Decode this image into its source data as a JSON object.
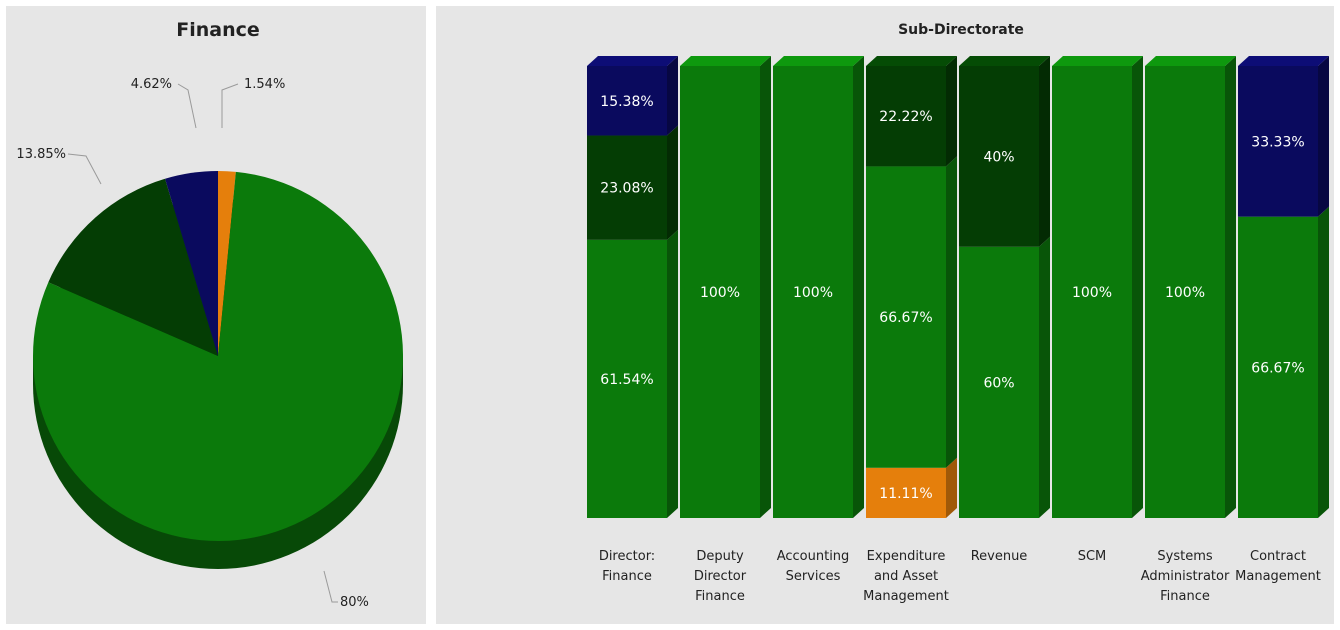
{
  "colors": {
    "green": "#0b7a0b",
    "dark_green": "#043d04",
    "navy": "#0a0a5e",
    "orange": "#e57f0c"
  },
  "chart_data": [
    {
      "type": "pie",
      "title": "Finance",
      "slices": [
        {
          "value": 80,
          "label": "80%",
          "color": "#0b7a0b"
        },
        {
          "value": 13.85,
          "label": "13.85%",
          "color": "#043d04"
        },
        {
          "value": 4.62,
          "label": "4.62%",
          "color": "#0a0a5e"
        },
        {
          "value": 1.54,
          "label": "1.54%",
          "color": "#e57f0c"
        }
      ]
    },
    {
      "type": "bar",
      "stacked": true,
      "percent": true,
      "title": "Sub-Directorate",
      "categories": [
        [
          "Director:",
          "Finance"
        ],
        [
          "Deputy",
          "Director",
          "Finance"
        ],
        [
          "Accounting",
          "Services"
        ],
        [
          "Expenditure",
          "and Asset",
          "Management"
        ],
        [
          "Revenue"
        ],
        [
          "SCM"
        ],
        [
          "Systems",
          "Administrator",
          "Finance"
        ],
        [
          "Contract",
          "Management"
        ]
      ],
      "series": [
        {
          "color": "#e57f0c",
          "values": [
            0,
            0,
            0,
            11.11,
            0,
            0,
            0,
            0
          ],
          "labels": [
            "",
            "",
            "",
            "11.11%",
            "",
            "",
            "",
            ""
          ]
        },
        {
          "color": "#0b7a0b",
          "values": [
            61.54,
            100,
            100,
            66.67,
            60,
            100,
            100,
            66.67
          ],
          "labels": [
            "61.54%",
            "100%",
            "100%",
            "66.67%",
            "60%",
            "100%",
            "100%",
            "66.67%"
          ]
        },
        {
          "color": "#043d04",
          "values": [
            23.08,
            0,
            0,
            22.22,
            40,
            0,
            0,
            0
          ],
          "labels": [
            "23.08%",
            "",
            "",
            "22.22%",
            "40%",
            "",
            "",
            ""
          ]
        },
        {
          "color": "#0a0a5e",
          "values": [
            15.38,
            0,
            0,
            0,
            0,
            0,
            0,
            33.33
          ],
          "labels": [
            "15.38%",
            "",
            "",
            "",
            "",
            "",
            "",
            "33.33%"
          ]
        }
      ],
      "ylim": [
        0,
        100
      ]
    }
  ]
}
